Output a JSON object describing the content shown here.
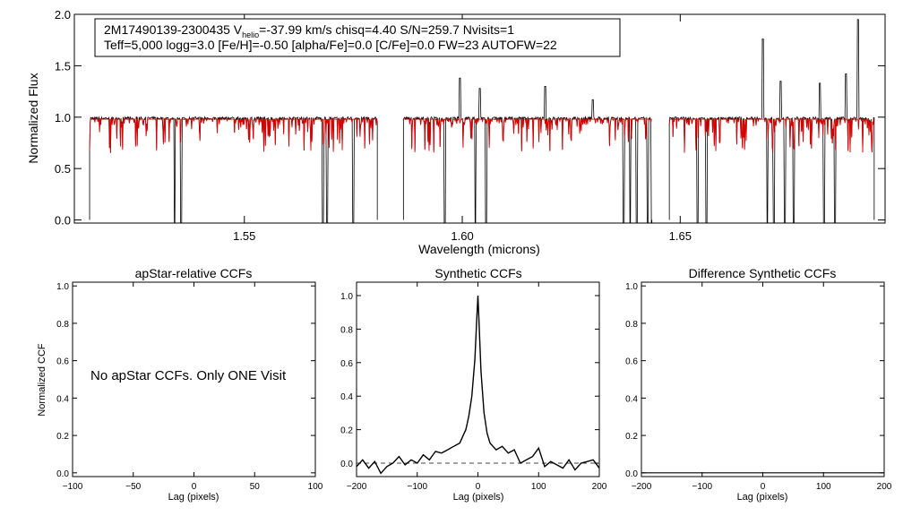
{
  "legend": {
    "line1_prefix": "2M17490139-2300435  V",
    "line1_sub": "helio",
    "line1_suffix": "=-37.99 km/s  chisq=4.40  S/N=259.7  Nvisits=1",
    "line2": "Teff=5,000 logg=3.0 [Fe/H]=-0.50 [alpha/Fe]=0.0 [C/Fe]=0.0 FW=23 AUTOFW=22"
  },
  "message": "No apStar CCFs.  Only ONE Visit",
  "colors": {
    "observed": "#000000",
    "model": "#dd0000",
    "axes": "#000000"
  },
  "chart_data": [
    {
      "id": "spectrum",
      "type": "line",
      "title": "",
      "xlabel": "Wavelength (microns)",
      "ylabel": "Normalized Flux",
      "xlim": [
        1.511,
        1.697
      ],
      "ylim": [
        -0.03,
        2.0
      ],
      "xticks": [
        "1.55",
        "1.60",
        "1.65"
      ],
      "yticks": [
        "0.0",
        "0.5",
        "1.0",
        "1.5",
        "2.0"
      ],
      "segments": [
        [
          1.5145,
          1.5805
        ],
        [
          1.5865,
          1.6435
        ],
        [
          1.6475,
          1.6945
        ]
      ],
      "continuum": 0.98,
      "series": [
        {
          "role": "observed",
          "emission_lines": [
            [
              1.5995,
              1.38
            ],
            [
              1.604,
              1.28
            ],
            [
              1.619,
              1.3
            ],
            [
              1.63,
              1.17
            ],
            [
              1.669,
              1.76
            ],
            [
              1.673,
              1.35
            ],
            [
              1.682,
              1.33
            ],
            [
              1.688,
              1.42
            ],
            [
              1.6908,
              1.95
            ]
          ],
          "deep_drops": [
            1.534,
            1.5355,
            1.568,
            1.569,
            1.575,
            1.596,
            1.603,
            1.6055,
            1.637,
            1.6385,
            1.64,
            1.6425,
            1.6435,
            1.654,
            1.656,
            1.67,
            1.6715,
            1.674,
            1.676,
            1.683,
            1.6855
          ]
        },
        {
          "role": "model"
        }
      ]
    },
    {
      "id": "apstar",
      "type": "line",
      "title": "apStar-relative CCFs",
      "xlabel": "Lag (pixels)",
      "ylabel": "Normalized CCF",
      "xlim": [
        -100,
        100
      ],
      "ylim": [
        -0.02,
        1.02
      ],
      "xticks": [
        "-100",
        "-50",
        "0",
        "50",
        "100"
      ],
      "yticks": [
        "0.0",
        "0.2",
        "0.4",
        "0.6",
        "0.8",
        "1.0"
      ],
      "series": []
    },
    {
      "id": "synthetic",
      "type": "line",
      "title": "Synthetic CCFs",
      "xlabel": "Lag (pixels)",
      "ylabel": "",
      "xlim": [
        -200,
        200
      ],
      "ylim": [
        -0.08,
        1.08
      ],
      "xticks": [
        "-200",
        "-100",
        "0",
        "100",
        "200"
      ],
      "yticks": [
        "0.0",
        "0.2",
        "0.4",
        "0.6",
        "0.8",
        "1.0"
      ],
      "reference_line": 0.0,
      "series": [
        {
          "lags": [
            -200,
            -190,
            -180,
            -170,
            -160,
            -150,
            -140,
            -130,
            -120,
            -110,
            -100,
            -90,
            -80,
            -70,
            -60,
            -50,
            -40,
            -30,
            -20,
            -15,
            -10,
            -5,
            -2,
            0,
            2,
            5,
            10,
            15,
            20,
            30,
            40,
            50,
            60,
            70,
            80,
            90,
            100,
            110,
            120,
            130,
            140,
            150,
            160,
            170,
            180,
            190,
            200
          ],
          "values": [
            -0.02,
            0.02,
            -0.03,
            0.01,
            -0.06,
            -0.02,
            0.0,
            0.04,
            -0.01,
            0.02,
            0.0,
            0.05,
            0.02,
            0.07,
            0.06,
            0.08,
            0.1,
            0.12,
            0.2,
            0.28,
            0.4,
            0.62,
            0.85,
            1.0,
            0.82,
            0.55,
            0.3,
            0.18,
            0.12,
            0.08,
            0.1,
            0.06,
            0.08,
            0.0,
            0.02,
            0.04,
            0.09,
            -0.02,
            0.01,
            -0.01,
            -0.03,
            0.02,
            -0.04,
            0.0,
            0.01,
            0.02,
            -0.03
          ]
        }
      ]
    },
    {
      "id": "difference",
      "type": "line",
      "title": "Difference Synthetic CCFs",
      "xlabel": "Lag (pixels)",
      "ylabel": "",
      "xlim": [
        -200,
        200
      ],
      "ylim": [
        -0.02,
        1.02
      ],
      "xticks": [
        "-200",
        "-100",
        "0",
        "100",
        "200"
      ],
      "yticks": [
        "0.0",
        "0.2",
        "0.4",
        "0.6",
        "0.8",
        "1.0"
      ],
      "series": [
        {
          "lags": [
            -200,
            200
          ],
          "values": [
            0.0,
            0.0
          ]
        }
      ]
    }
  ]
}
